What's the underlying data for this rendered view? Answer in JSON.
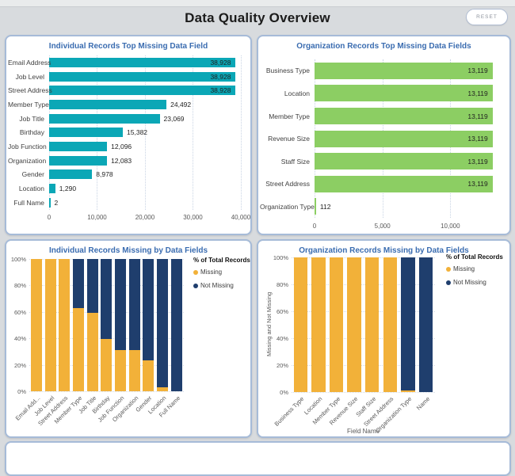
{
  "header": {
    "title": "Data Quality Overview",
    "reset_label": "RESET"
  },
  "colors": {
    "teal": "#0ba7b6",
    "green": "#8cce63",
    "missing_orange": "#f2b139",
    "not_missing_navy": "#1f3e6d",
    "title_blue": "#3a6cb0"
  },
  "chart_data": [
    {
      "type": "bar",
      "orientation": "horizontal",
      "title": "Individual Records Top Missing Data Field",
      "categories": [
        "Email Address",
        "Job Level",
        "Street Address",
        "Member Type",
        "Job Title",
        "Birthday",
        "Job Function",
        "Organization",
        "Gender",
        "Location",
        "Full Name"
      ],
      "values": [
        38928,
        38928,
        38928,
        24492,
        23069,
        15382,
        12096,
        12083,
        8978,
        1290,
        2
      ],
      "value_labels": [
        "38,928",
        "38,928",
        "38,928",
        "24,492",
        "23,069",
        "15,382",
        "12,096",
        "12,083",
        "8,978",
        "1,290",
        "2"
      ],
      "x_ticks": [
        {
          "value": 0,
          "label": "0"
        },
        {
          "value": 10000,
          "label": "10,000"
        },
        {
          "value": 20000,
          "label": "20,000"
        },
        {
          "value": 30000,
          "label": "30,000"
        },
        {
          "value": 40000,
          "label": "40,000"
        }
      ],
      "xmax": 41000,
      "bar_color_key": "teal",
      "grid": true,
      "legend_position": "none"
    },
    {
      "type": "bar",
      "orientation": "horizontal",
      "title": "Organization Records Top Missing Data Fields",
      "categories": [
        "Business Type",
        "Location",
        "Member Type",
        "Revenue Size",
        "Staff Size",
        "Street Address",
        "Organization Type"
      ],
      "values": [
        13119,
        13119,
        13119,
        13119,
        13119,
        13119,
        112
      ],
      "value_labels": [
        "13,119",
        "13,119",
        "13,119",
        "13,119",
        "13,119",
        "13,119",
        "112"
      ],
      "x_ticks": [
        {
          "value": 0,
          "label": "0"
        },
        {
          "value": 5000,
          "label": "5,000"
        },
        {
          "value": 10000,
          "label": "10,000"
        }
      ],
      "xmax": 13600,
      "bar_color_key": "green",
      "grid": true,
      "legend_position": "none"
    },
    {
      "type": "bar",
      "stacked": true,
      "orientation": "vertical",
      "title": "Individual Records Missing by Data Fields",
      "categories": [
        "Email Add...",
        "Job Level",
        "Street Address",
        "Member Type",
        "Job Title",
        "Birthday",
        "Job Function",
        "Organization",
        "Gender",
        "Location",
        "Full Name"
      ],
      "series": [
        {
          "name": "Missing",
          "color_key": "missing_orange",
          "values": [
            100,
            100,
            100,
            62.9,
            59.3,
            39.5,
            31.1,
            31.0,
            23.1,
            3.3,
            0
          ]
        },
        {
          "name": "Not Missing",
          "color_key": "not_missing_navy",
          "values": [
            0,
            0,
            0,
            37.1,
            40.7,
            60.5,
            68.9,
            69.0,
            76.9,
            96.7,
            100
          ]
        }
      ],
      "legend_title": "% of Total Records",
      "legend_position": "right",
      "y_ticks": [
        "0%",
        "20%",
        "40%",
        "60%",
        "80%",
        "100%"
      ],
      "ylim": [
        0,
        100
      ],
      "grid": true,
      "ylabel": "",
      "xlabel": ""
    },
    {
      "type": "bar",
      "stacked": true,
      "orientation": "vertical",
      "title": "Organization Records Missing by Data Fields",
      "categories": [
        "Business Type",
        "Location",
        "Member Type",
        "Revenue Size",
        "Staff Size",
        "Street Address",
        "Organization Type",
        "Name"
      ],
      "series": [
        {
          "name": "Missing",
          "color_key": "missing_orange",
          "values": [
            100,
            100,
            100,
            100,
            100,
            100,
            0.9,
            0
          ]
        },
        {
          "name": "Not Missing",
          "color_key": "not_missing_navy",
          "values": [
            0,
            0,
            0,
            0,
            0,
            0,
            99.1,
            100
          ]
        }
      ],
      "legend_title": "% of Total Records",
      "legend_position": "right",
      "y_ticks": [
        "0%",
        "20%",
        "40%",
        "60%",
        "80%",
        "100%"
      ],
      "ylim": [
        0,
        100
      ],
      "grid": true,
      "ylabel": "Missing and Not Missing",
      "xlabel": "Field Name"
    }
  ]
}
